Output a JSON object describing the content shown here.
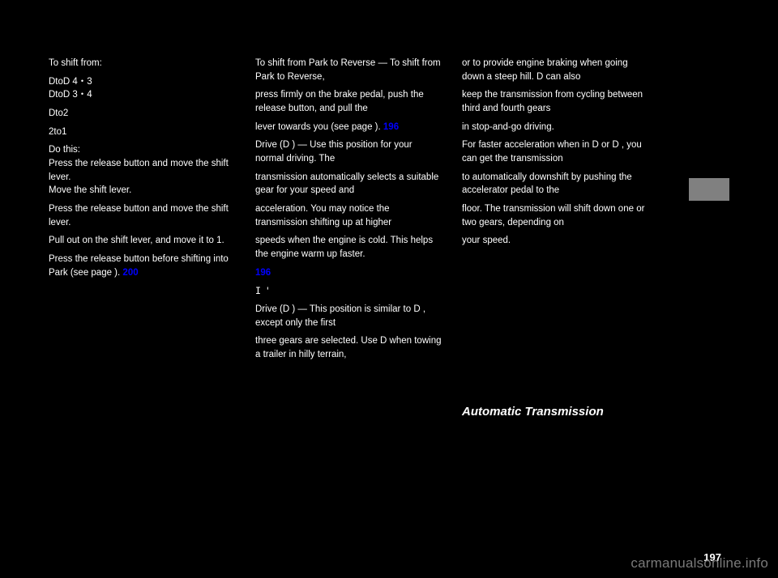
{
  "left": {
    "p1": "To shift from:",
    "p2_a": "DtoD",
    "p2_b": "DtoD",
    "p3": "Dto2",
    "p4": "2to1",
    "p5_a": "Do this:",
    "p5_b": "Press the release button and move the shift lever.",
    "p5_c": "Move the shift lever.",
    "p6": "Press the release button and move the shift lever.",
    "p7": "Pull out on the shift lever, and move it to 1.",
    "pageRef": "200",
    "p8": "Press the release button before shifting into Park (see page     ).",
    "p9": "4・3",
    "p10": "3・4"
  },
  "mid": {
    "p1": "To shift from Park to Reverse — To shift from Park to Reverse,",
    "p2": "press firmly on the brake pedal, push the release button, and pull the",
    "p3": "lever towards you (see page     ).",
    "pageRef1": "196",
    "p4": "Drive (D ) — Use this position for your normal driving. The",
    "p5": "transmission automatically selects a suitable gear for your speed and",
    "p6": "acceleration. You may notice the transmission shifting up at higher",
    "p7": "speeds when the engine is cold. This helps the engine warm up faster.",
    "glyph": "I '",
    "p8": "Drive (D ) — This position is similar to D , except only the first",
    "p9": "three gears are selected. Use D when towing a trailer in hilly terrain,",
    "pageRef2": "196"
  },
  "right": {
    "p1": "or to provide engine braking when going down a steep hill. D  can also",
    "p2": "keep the transmission from cycling between third and fourth gears",
    "p3": "in stop-and-go driving.",
    "p4": "For faster acceleration when in D or D , you can get the transmission",
    "p5": "to automatically downshift by pushing the accelerator pedal to the",
    "p6": "floor. The transmission will shift down one or two gears, depending on",
    "p7": "your speed."
  },
  "sectionTitle": "Automatic Transmission",
  "pageNumber": "197",
  "watermark": "carmanualsonline.info"
}
